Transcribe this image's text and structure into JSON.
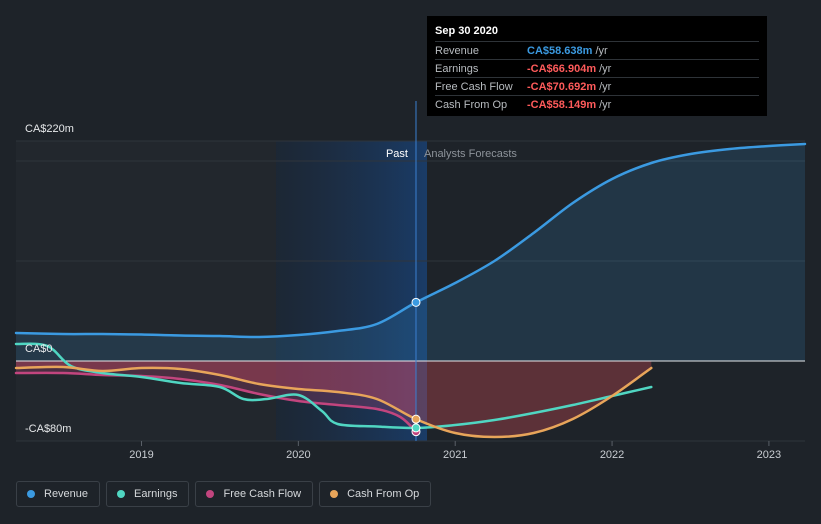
{
  "chart_data": {
    "type": "line",
    "y_axis_labels": [
      "CA$220m",
      "CA$0",
      "-CA$80m"
    ],
    "ylim": [
      -80,
      220
    ],
    "x_ticks": [
      {
        "label": "2019",
        "t": 2019.0
      },
      {
        "label": "2020",
        "t": 2020.0
      },
      {
        "label": "2021",
        "t": 2021.0
      },
      {
        "label": "2022",
        "t": 2022.0
      },
      {
        "label": "2023",
        "t": 2023.0
      }
    ],
    "xlim": [
      2018.2,
      2023.23
    ],
    "past_label": "Past",
    "forecast_label": "Analysts Forecasts",
    "divider_t": 2020.75,
    "series": [
      {
        "name": "Revenue",
        "color": "#3b9ae1",
        "points": [
          [
            2018.2,
            28
          ],
          [
            2018.5,
            27
          ],
          [
            2018.75,
            27
          ],
          [
            2019.0,
            26.5
          ],
          [
            2019.25,
            25.5
          ],
          [
            2019.5,
            25
          ],
          [
            2019.75,
            24
          ],
          [
            2020.0,
            26
          ],
          [
            2020.25,
            30
          ],
          [
            2020.5,
            37
          ],
          [
            2020.75,
            58.638
          ],
          [
            2021.0,
            78
          ],
          [
            2021.25,
            100
          ],
          [
            2021.5,
            128
          ],
          [
            2021.75,
            158
          ],
          [
            2022.0,
            182
          ],
          [
            2022.25,
            198
          ],
          [
            2022.5,
            207
          ],
          [
            2022.75,
            212
          ],
          [
            2023.0,
            215
          ],
          [
            2023.23,
            217
          ]
        ]
      },
      {
        "name": "Earnings",
        "color": "#50d6c2",
        "points": [
          [
            2018.2,
            17
          ],
          [
            2018.4,
            15
          ],
          [
            2018.55,
            -5
          ],
          [
            2018.75,
            -12
          ],
          [
            2019.0,
            -16
          ],
          [
            2019.25,
            -22
          ],
          [
            2019.5,
            -26
          ],
          [
            2019.65,
            -38
          ],
          [
            2019.8,
            -38
          ],
          [
            2020.0,
            -34
          ],
          [
            2020.15,
            -50
          ],
          [
            2020.25,
            -63
          ],
          [
            2020.5,
            -65.5
          ],
          [
            2020.75,
            -66.904
          ],
          [
            2021.0,
            -64
          ],
          [
            2021.25,
            -59
          ],
          [
            2021.5,
            -52
          ],
          [
            2021.75,
            -44
          ],
          [
            2022.0,
            -35
          ],
          [
            2022.25,
            -26
          ]
        ]
      },
      {
        "name": "Free Cash Flow",
        "color": "#c2457e",
        "points": [
          [
            2018.2,
            -12
          ],
          [
            2018.5,
            -12
          ],
          [
            2018.75,
            -14
          ],
          [
            2019.0,
            -15
          ],
          [
            2019.25,
            -18
          ],
          [
            2019.5,
            -24
          ],
          [
            2019.75,
            -33
          ],
          [
            2020.0,
            -40
          ],
          [
            2020.25,
            -44
          ],
          [
            2020.5,
            -48
          ],
          [
            2020.65,
            -56
          ],
          [
            2020.75,
            -70.692
          ]
        ]
      },
      {
        "name": "Cash From Op",
        "color": "#e8a55a",
        "points": [
          [
            2018.2,
            -7
          ],
          [
            2018.5,
            -6
          ],
          [
            2018.75,
            -10
          ],
          [
            2019.0,
            -7
          ],
          [
            2019.25,
            -8
          ],
          [
            2019.5,
            -14
          ],
          [
            2019.75,
            -23
          ],
          [
            2020.0,
            -28
          ],
          [
            2020.25,
            -31
          ],
          [
            2020.5,
            -38
          ],
          [
            2020.75,
            -58.149
          ],
          [
            2021.0,
            -72
          ],
          [
            2021.25,
            -76
          ],
          [
            2021.5,
            -72
          ],
          [
            2021.75,
            -58
          ],
          [
            2022.0,
            -35
          ],
          [
            2022.25,
            -7
          ]
        ]
      }
    ]
  },
  "tooltip": {
    "date": "Sep 30 2020",
    "rows": [
      {
        "name": "Revenue",
        "value": "CA$58.638m",
        "unit": "/yr",
        "color": "#3b9ae1"
      },
      {
        "name": "Earnings",
        "value": "-CA$66.904m",
        "unit": "/yr",
        "color": "#ff5b5b"
      },
      {
        "name": "Free Cash Flow",
        "value": "-CA$70.692m",
        "unit": "/yr",
        "color": "#ff5b5b"
      },
      {
        "name": "Cash From Op",
        "value": "-CA$58.149m",
        "unit": "/yr",
        "color": "#ff5b5b"
      }
    ]
  },
  "legend": [
    {
      "label": "Revenue",
      "color": "#3b9ae1"
    },
    {
      "label": "Earnings",
      "color": "#50d6c2"
    },
    {
      "label": "Free Cash Flow",
      "color": "#c2457e"
    },
    {
      "label": "Cash From Op",
      "color": "#e8a55a"
    }
  ]
}
